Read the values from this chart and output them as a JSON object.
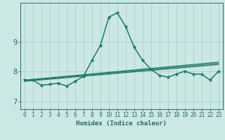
{
  "title": "",
  "xlabel": "Humidex (Indice chaleur)",
  "background_color": "#cce8e4",
  "grid_color": "#aacfcc",
  "line_color": "#1a7a6e",
  "xlim": [
    -0.5,
    23.5
  ],
  "ylim": [
    6.75,
    10.3
  ],
  "yticks": [
    7,
    8,
    9
  ],
  "xticks": [
    0,
    1,
    2,
    3,
    4,
    5,
    6,
    7,
    8,
    9,
    10,
    11,
    12,
    13,
    14,
    15,
    16,
    17,
    18,
    19,
    20,
    21,
    22,
    23
  ],
  "lines": [
    {
      "x": [
        0,
        1,
        2,
        3,
        4,
        5,
        6,
        7,
        8,
        9,
        10,
        11,
        12,
        13,
        14,
        15,
        16,
        17,
        18,
        19,
        20,
        21,
        22,
        23
      ],
      "y": [
        7.72,
        7.72,
        7.55,
        7.58,
        7.62,
        7.52,
        7.68,
        7.85,
        8.38,
        8.88,
        9.82,
        9.97,
        9.5,
        8.82,
        8.38,
        8.08,
        7.88,
        7.82,
        7.92,
        8.02,
        7.92,
        7.92,
        7.72,
        8.02
      ],
      "marker": "*",
      "markersize": 3.5,
      "linewidth": 1.1,
      "has_marker": true
    },
    {
      "x": [
        0,
        23
      ],
      "y": [
        7.72,
        8.32
      ],
      "marker": "None",
      "markersize": 0,
      "linewidth": 0.9,
      "has_marker": false
    },
    {
      "x": [
        0,
        23
      ],
      "y": [
        7.7,
        8.28
      ],
      "marker": "None",
      "markersize": 0,
      "linewidth": 0.9,
      "has_marker": false
    },
    {
      "x": [
        0,
        23
      ],
      "y": [
        7.68,
        8.24
      ],
      "marker": "None",
      "markersize": 0,
      "linewidth": 0.9,
      "has_marker": false
    }
  ],
  "tick_fontsize": 5.5,
  "xlabel_fontsize": 6.5,
  "tick_color": "#2a6a64",
  "spine_color": "#2a6a64"
}
